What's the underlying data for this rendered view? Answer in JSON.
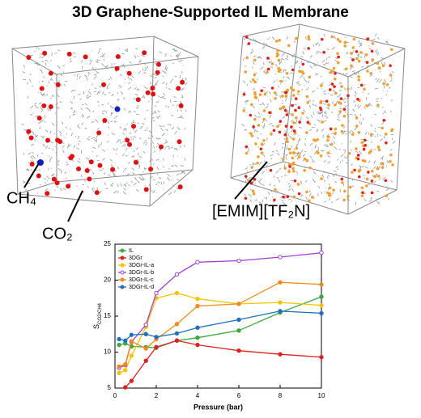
{
  "chart_data": {
    "type": "line",
    "title": "3D Graphene-Supported IL Membrane",
    "annotations": [
      "CH₄",
      "CO₂",
      "[EMIM][TF₂N]"
    ],
    "xlabel": "Pressure (bar)",
    "ylabel": {
      "main": "S",
      "sub": "CO2/CH4"
    },
    "x": [
      0.2,
      0.5,
      0.8,
      1.5,
      2,
      3,
      4,
      6,
      8,
      10
    ],
    "xlim": [
      0,
      10
    ],
    "xticks": [
      0,
      2,
      4,
      6,
      8,
      10
    ],
    "ylim": [
      5,
      25
    ],
    "yticks": [
      5,
      10,
      15,
      20,
      25
    ],
    "legend": "top-left",
    "series": [
      {
        "name": "IL",
        "color": "#3aa83a",
        "values": [
          11,
          11.2,
          10.8,
          10.7,
          10.6,
          11.6,
          12,
          13,
          15.5,
          17.7
        ]
      },
      {
        "name": "3DGr",
        "color": "#e02020",
        "values": [
          null,
          5.1,
          6,
          8.8,
          10.7,
          11.6,
          11,
          10.2,
          9.7,
          9.3
        ]
      },
      {
        "name": "3DGr-IL-a",
        "color": "#f5c400",
        "values": [
          7.1,
          7.5,
          9.5,
          13.5,
          17.5,
          18.2,
          17.4,
          16.7,
          16.9,
          16.5
        ]
      },
      {
        "name": "3DGr-IL-b",
        "color": "#a040d0",
        "values": [
          7.8,
          8.2,
          11.4,
          13.8,
          18.2,
          20.8,
          22.5,
          22.7,
          23.2,
          23.8
        ]
      },
      {
        "name": "3DGr-IL-c",
        "color": "#f08a20",
        "values": [
          8,
          8.3,
          11.5,
          10.5,
          11.8,
          13.9,
          16.4,
          16.7,
          19.7,
          19.4
        ]
      },
      {
        "name": "3DGr-IL-d",
        "color": "#2070c0",
        "values": [
          11.8,
          11.6,
          12.4,
          12.5,
          12.1,
          12.6,
          13.4,
          14.5,
          15.7,
          15.4
        ]
      }
    ]
  }
}
